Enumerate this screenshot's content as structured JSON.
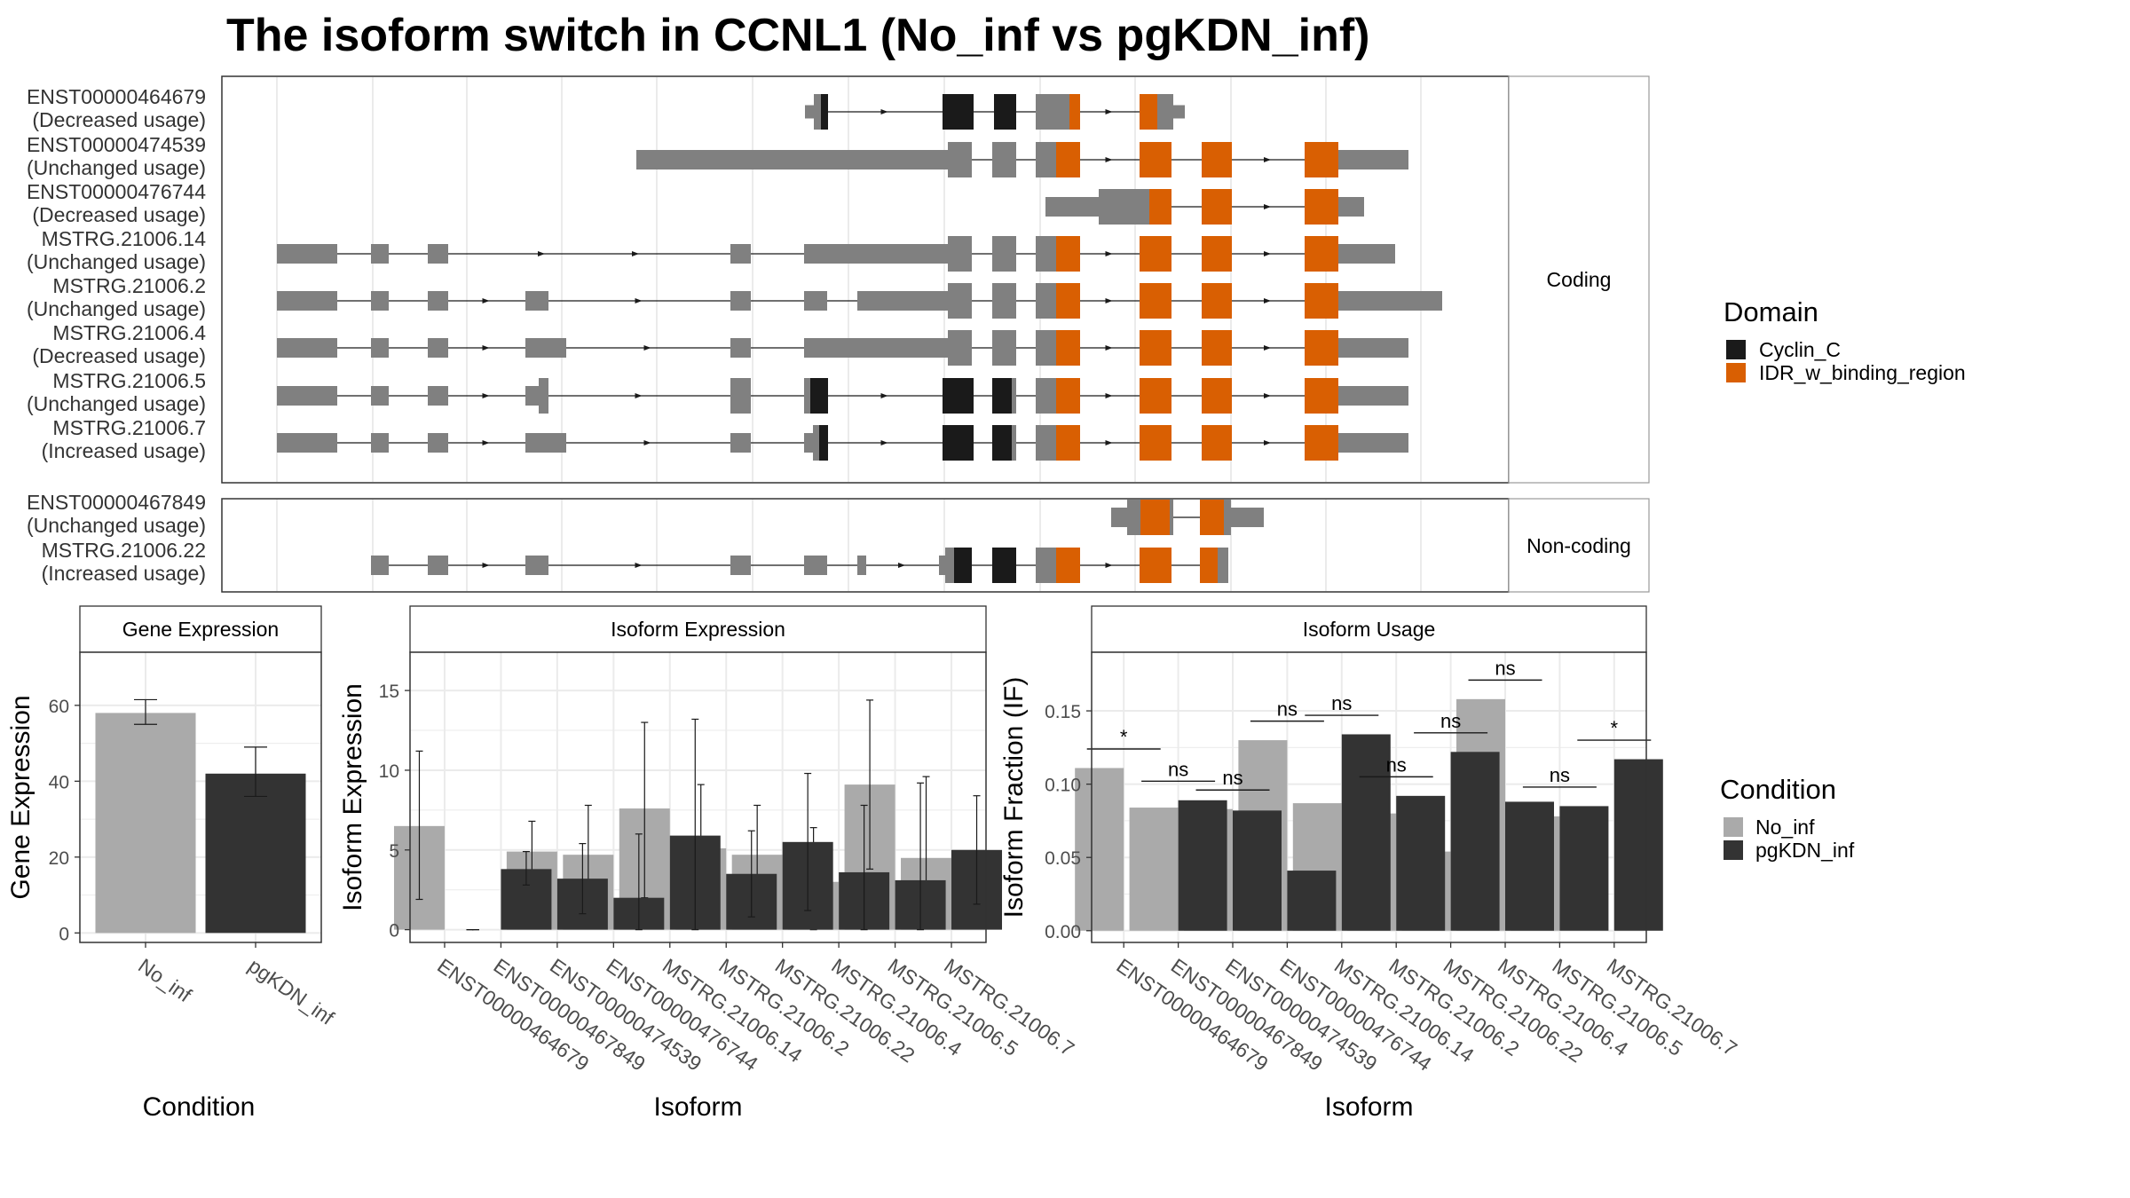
{
  "title": "The isoform switch in CCNL1 (No_inf vs pgKDN_inf)",
  "colors": {
    "cyclin": "#1a1a1a",
    "idr": "#d95f02",
    "exon": "#808080",
    "no_inf": "#aaaaaa",
    "pgkdn_inf": "#333333",
    "panel_border": "#333333",
    "strip_border": "#999999",
    "grid": "#ebebeb"
  },
  "structure": {
    "coding_strip": "Coding",
    "noncoding_strip": "Non-coding",
    "legend_title": "Domain",
    "legend_items": [
      {
        "label": "Cyclin_C",
        "color": "#1a1a1a"
      },
      {
        "label": "IDR_w_binding_region",
        "color": "#d95f02"
      }
    ],
    "coding": [
      {
        "name": "ENST00000464679",
        "usage": "(Decreased usage)"
      },
      {
        "name": "ENST00000474539",
        "usage": "(Unchanged usage)"
      },
      {
        "name": "ENST00000476744",
        "usage": "(Decreased usage)"
      },
      {
        "name": "MSTRG.21006.14",
        "usage": "(Unchanged usage)"
      },
      {
        "name": "MSTRG.21006.2",
        "usage": "(Unchanged usage)"
      },
      {
        "name": "MSTRG.21006.4",
        "usage": "(Decreased usage)"
      },
      {
        "name": "MSTRG.21006.5",
        "usage": "(Unchanged usage)"
      },
      {
        "name": "MSTRG.21006.7",
        "usage": "(Increased usage)"
      }
    ],
    "noncoding": [
      {
        "name": "ENST00000467849",
        "usage": "(Unchanged usage)"
      },
      {
        "name": "MSTRG.21006.22",
        "usage": "(Increased usage)"
      }
    ]
  },
  "chart_data": [
    {
      "type": "bar",
      "strip": "Gene Expression",
      "xlabel": "Condition",
      "ylabel": "Gene Expression",
      "categories": [
        "No_inf",
        "pgKDN_inf"
      ],
      "values": [
        58,
        42
      ],
      "err_low": [
        55,
        36
      ],
      "err_high": [
        61.5,
        49
      ],
      "ylim": [
        -2.5,
        74
      ],
      "yticks": [
        0,
        20,
        40,
        60
      ]
    },
    {
      "type": "bar",
      "strip": "Isoform Expression",
      "xlabel": "Isoform",
      "ylabel": "Isoform Expression",
      "categories": [
        "ENST00000464679",
        "ENST00000467849",
        "ENST00000474539",
        "ENST00000476744",
        "MSTRG.21006.14",
        "MSTRG.21006.2",
        "MSTRG.21006.22",
        "MSTRG.21006.4",
        "MSTRG.21006.5",
        "MSTRG.21006.7"
      ],
      "series": [
        {
          "name": "No_inf",
          "values": [
            6.5,
            0,
            4.9,
            4.7,
            7.6,
            5.1,
            4.7,
            3.0,
            9.1,
            4.5
          ],
          "err_low": [
            1.9,
            0,
            3.1,
            2.1,
            2.0,
            1.2,
            1.6,
            0.0,
            3.8,
            0.2
          ],
          "err_high": [
            11.2,
            0,
            6.8,
            7.8,
            13.0,
            9.1,
            7.8,
            6.4,
            14.4,
            9.6
          ]
        },
        {
          "name": "pgKDN_inf",
          "values": [
            0,
            3.8,
            3.2,
            2.0,
            5.9,
            3.5,
            5.5,
            3.6,
            3.1,
            5.0
          ],
          "err_low": [
            0,
            2.8,
            1.0,
            0.0,
            0.0,
            0.8,
            1.2,
            0.0,
            0.0,
            1.6
          ],
          "err_high": [
            0,
            4.9,
            5.4,
            6.0,
            13.2,
            6.2,
            9.8,
            7.8,
            9.2,
            8.4
          ]
        }
      ],
      "ylim": [
        -0.8,
        17.4
      ],
      "yticks": [
        0,
        5,
        10,
        15
      ]
    },
    {
      "type": "bar",
      "strip": "Isoform Usage",
      "xlabel": "Isoform",
      "ylabel": "Isoform Fraction (IF)",
      "categories": [
        "ENST00000464679",
        "ENST00000467849",
        "ENST00000474539",
        "ENST00000476744",
        "MSTRG.21006.14",
        "MSTRG.21006.2",
        "MSTRG.21006.22",
        "MSTRG.21006.4",
        "MSTRG.21006.5",
        "MSTRG.21006.7"
      ],
      "series": [
        {
          "name": "No_inf",
          "values": [
            0.111,
            0.084,
            0.083,
            0.13,
            0.087,
            0.08,
            0.054,
            0.158,
            0.078,
            0.0
          ]
        },
        {
          "name": "pgKDN_inf",
          "values": [
            0.0,
            0.089,
            0.082,
            0.041,
            0.134,
            0.092,
            0.122,
            0.088,
            0.085,
            0.117
          ]
        }
      ],
      "significance": [
        "*",
        "ns",
        "ns",
        "ns",
        "ns",
        "ns",
        "ns",
        "ns",
        "ns",
        "*"
      ],
      "ylim": [
        -0.008,
        0.19
      ],
      "yticks": [
        "0.00",
        "0.05",
        "0.10",
        "0.15"
      ],
      "legend_title": "Condition",
      "legend_items": [
        "No_inf",
        "pgKDN_inf"
      ]
    }
  ]
}
